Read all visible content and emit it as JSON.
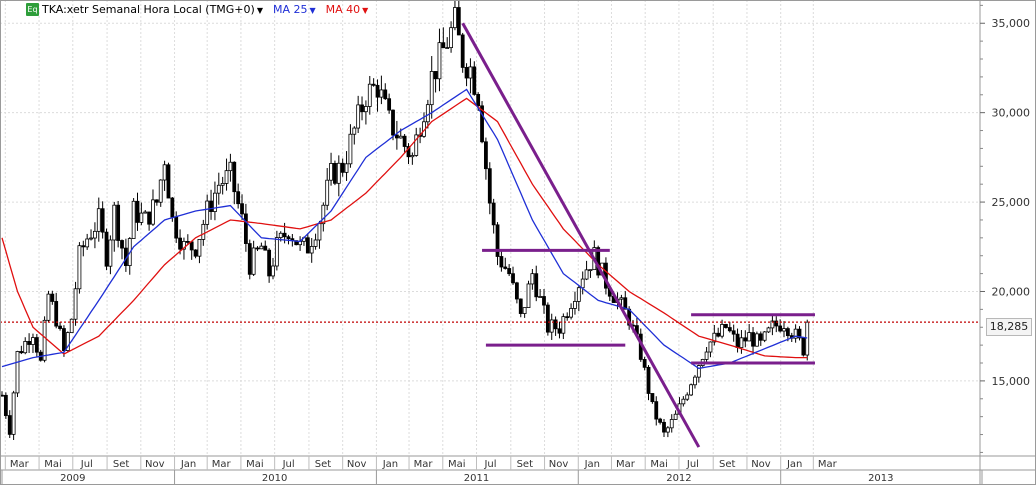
{
  "legend": {
    "symbol_text": "Eq",
    "instrument": "TKA:xetr Semanal Hora Local (TMG+0)",
    "ma25_label": "MA 25",
    "ma40_label": "MA 40"
  },
  "last_price_label": "18,285",
  "colors": {
    "candle": "#000000",
    "ma25": "#1f2fd6",
    "ma40": "#e01010",
    "trend_lines": "#7a1f8c",
    "price_line": "#c00000",
    "grid": "#dcdcdc",
    "legend_symbol": "#2e9e3a"
  },
  "chart_data": {
    "type": "candlestick",
    "instrument": "TKA:xetr",
    "interval": "Semanal",
    "x_range": [
      "2009-02-23",
      "2013-12-31"
    ],
    "y_range": [
      10800,
      36300
    ],
    "y_ticks": [
      15000,
      20000,
      25000,
      30000,
      35000
    ],
    "y_tick_labels": [
      "15,000",
      "20,000",
      "25,000",
      "30,000",
      "35,000"
    ],
    "month_labels": [
      {
        "date": "2009-03-01",
        "label": "Mar"
      },
      {
        "date": "2009-05-01",
        "label": "Mai"
      },
      {
        "date": "2009-07-01",
        "label": "Jul"
      },
      {
        "date": "2009-09-01",
        "label": "Set"
      },
      {
        "date": "2009-11-01",
        "label": "Nov"
      },
      {
        "date": "2010-01-01",
        "label": "Jan"
      },
      {
        "date": "2010-03-01",
        "label": "Mar"
      },
      {
        "date": "2010-05-01",
        "label": "Mai"
      },
      {
        "date": "2010-07-01",
        "label": "Jul"
      },
      {
        "date": "2010-09-01",
        "label": "Set"
      },
      {
        "date": "2010-11-01",
        "label": "Nov"
      },
      {
        "date": "2011-01-01",
        "label": "Jan"
      },
      {
        "date": "2011-03-01",
        "label": "Mar"
      },
      {
        "date": "2011-05-01",
        "label": "Mai"
      },
      {
        "date": "2011-07-01",
        "label": "Jul"
      },
      {
        "date": "2011-09-01",
        "label": "Set"
      },
      {
        "date": "2011-11-01",
        "label": "Nov"
      },
      {
        "date": "2012-01-01",
        "label": "Jan"
      },
      {
        "date": "2012-03-01",
        "label": "Mar"
      },
      {
        "date": "2012-05-01",
        "label": "Mai"
      },
      {
        "date": "2012-07-01",
        "label": "Jul"
      },
      {
        "date": "2012-09-01",
        "label": "Set"
      },
      {
        "date": "2012-11-01",
        "label": "Nov"
      },
      {
        "date": "2013-01-01",
        "label": "Jan"
      },
      {
        "date": "2013-03-01",
        "label": "Mar"
      }
    ],
    "year_labels": [
      {
        "date": "2009-07-01",
        "label": "2009"
      },
      {
        "date": "2010-07-01",
        "label": "2010"
      },
      {
        "date": "2011-07-01",
        "label": "2011"
      },
      {
        "date": "2012-07-01",
        "label": "2012"
      },
      {
        "date": "2013-07-01",
        "label": "2013"
      }
    ],
    "price_anchors": [
      [
        "2009-02-23",
        14200
      ],
      [
        "2009-03-09",
        12300
      ],
      [
        "2009-03-23",
        16500
      ],
      [
        "2009-04-20",
        17800
      ],
      [
        "2009-05-04",
        16000
      ],
      [
        "2009-05-18",
        19800
      ],
      [
        "2009-06-01",
        18500
      ],
      [
        "2009-06-15",
        16600
      ],
      [
        "2009-06-29",
        18500
      ],
      [
        "2009-07-13",
        22000
      ],
      [
        "2009-07-27",
        23000
      ],
      [
        "2009-08-17",
        24000
      ],
      [
        "2009-08-31",
        22000
      ],
      [
        "2009-09-14",
        24500
      ],
      [
        "2009-10-05",
        21500
      ],
      [
        "2009-10-19",
        24500
      ],
      [
        "2009-11-09",
        24000
      ],
      [
        "2009-11-30",
        25000
      ],
      [
        "2009-12-14",
        27500
      ],
      [
        "2009-12-28",
        24000
      ],
      [
        "2010-01-18",
        22500
      ],
      [
        "2010-02-08",
        22500
      ],
      [
        "2010-03-01",
        24500
      ],
      [
        "2010-03-22",
        26000
      ],
      [
        "2010-04-12",
        26500
      ],
      [
        "2010-05-03",
        24000
      ],
      [
        "2010-05-17",
        21500
      ],
      [
        "2010-06-07",
        22500
      ],
      [
        "2010-06-21",
        21000
      ],
      [
        "2010-07-05",
        22500
      ],
      [
        "2010-07-26",
        23500
      ],
      [
        "2010-08-16",
        22500
      ],
      [
        "2010-08-30",
        22500
      ],
      [
        "2010-09-20",
        24000
      ],
      [
        "2010-10-11",
        26500
      ],
      [
        "2010-11-01",
        27000
      ],
      [
        "2010-11-22",
        29000
      ],
      [
        "2010-12-13",
        31000
      ],
      [
        "2011-01-03",
        31500
      ],
      [
        "2011-01-24",
        29500
      ],
      [
        "2011-02-14",
        28500
      ],
      [
        "2011-03-07",
        27500
      ],
      [
        "2011-03-21",
        29500
      ],
      [
        "2011-04-11",
        32000
      ],
      [
        "2011-05-02",
        33500
      ],
      [
        "2011-05-23",
        35000
      ],
      [
        "2011-06-06",
        33000
      ],
      [
        "2011-06-20",
        32500
      ],
      [
        "2011-07-04",
        31000
      ],
      [
        "2011-07-25",
        25000
      ],
      [
        "2011-08-08",
        22000
      ],
      [
        "2011-08-29",
        21000
      ],
      [
        "2011-09-19",
        18500
      ],
      [
        "2011-10-10",
        21000
      ],
      [
        "2011-10-24",
        19500
      ],
      [
        "2011-11-07",
        18000
      ],
      [
        "2011-11-28",
        18000
      ],
      [
        "2011-12-19",
        19500
      ],
      [
        "2012-01-09",
        21000
      ],
      [
        "2012-01-30",
        22000
      ],
      [
        "2012-02-20",
        20500
      ],
      [
        "2012-03-12",
        19500
      ],
      [
        "2012-04-02",
        18500
      ],
      [
        "2012-04-23",
        16500
      ],
      [
        "2012-05-14",
        13500
      ],
      [
        "2012-06-04",
        12000
      ],
      [
        "2012-06-25",
        13000
      ],
      [
        "2012-07-16",
        14500
      ],
      [
        "2012-07-30",
        15500
      ],
      [
        "2012-08-20",
        17000
      ],
      [
        "2012-09-10",
        17500
      ],
      [
        "2012-09-24",
        18000
      ],
      [
        "2012-10-15",
        17000
      ],
      [
        "2012-11-05",
        17500
      ],
      [
        "2012-11-26",
        17000
      ],
      [
        "2012-12-17",
        18000
      ],
      [
        "2013-01-07",
        18300
      ],
      [
        "2013-01-28",
        17500
      ],
      [
        "2013-02-11",
        16800
      ],
      [
        "2013-02-18",
        18285
      ]
    ],
    "ma25_anchors": [
      [
        "2009-02-23",
        15800
      ],
      [
        "2009-04-20",
        16300
      ],
      [
        "2009-06-15",
        16600
      ],
      [
        "2009-08-17",
        19500
      ],
      [
        "2009-10-19",
        22500
      ],
      [
        "2009-12-14",
        24000
      ],
      [
        "2010-02-08",
        24500
      ],
      [
        "2010-04-12",
        24800
      ],
      [
        "2010-06-07",
        23000
      ],
      [
        "2010-08-16",
        22800
      ],
      [
        "2010-10-11",
        24500
      ],
      [
        "2010-12-13",
        27500
      ],
      [
        "2011-02-14",
        29000
      ],
      [
        "2011-04-11",
        30000
      ],
      [
        "2011-06-13",
        31300
      ],
      [
        "2011-08-08",
        28500
      ],
      [
        "2011-10-10",
        24000
      ],
      [
        "2011-12-05",
        21000
      ],
      [
        "2012-02-06",
        19500
      ],
      [
        "2012-04-02",
        19000
      ],
      [
        "2012-06-04",
        17000
      ],
      [
        "2012-08-06",
        15700
      ],
      [
        "2012-10-01",
        16000
      ],
      [
        "2012-12-03",
        16800
      ],
      [
        "2013-01-28",
        17500
      ],
      [
        "2013-02-18",
        17400
      ]
    ],
    "ma40_anchors": [
      [
        "2009-02-23",
        23000
      ],
      [
        "2009-03-23",
        20000
      ],
      [
        "2009-04-20",
        18000
      ],
      [
        "2009-06-15",
        16500
      ],
      [
        "2009-08-17",
        17500
      ],
      [
        "2009-10-19",
        19500
      ],
      [
        "2009-12-14",
        21500
      ],
      [
        "2010-02-08",
        23000
      ],
      [
        "2010-04-12",
        24000
      ],
      [
        "2010-06-07",
        23800
      ],
      [
        "2010-08-16",
        23500
      ],
      [
        "2010-10-11",
        24000
      ],
      [
        "2010-12-13",
        25500
      ],
      [
        "2011-02-14",
        27500
      ],
      [
        "2011-04-11",
        29500
      ],
      [
        "2011-06-13",
        30800
      ],
      [
        "2011-08-08",
        29500
      ],
      [
        "2011-10-10",
        26000
      ],
      [
        "2011-12-05",
        23500
      ],
      [
        "2012-02-06",
        21500
      ],
      [
        "2012-04-02",
        20000
      ],
      [
        "2012-06-04",
        18800
      ],
      [
        "2012-08-06",
        17500
      ],
      [
        "2012-10-01",
        17000
      ],
      [
        "2012-12-03",
        16400
      ],
      [
        "2013-01-28",
        16300
      ],
      [
        "2013-02-18",
        16300
      ]
    ],
    "last_price": 18285,
    "annotations": [
      {
        "type": "trendline",
        "from": [
          "2011-06-06",
          35000
        ],
        "to": [
          "2012-08-06",
          11300
        ]
      },
      {
        "type": "hline",
        "from": [
          "2011-07-11",
          22300
        ],
        "to": [
          "2012-02-27",
          22300
        ]
      },
      {
        "type": "hline",
        "from": [
          "2011-07-18",
          17000
        ],
        "to": [
          "2012-03-26",
          17000
        ]
      },
      {
        "type": "hline",
        "from": [
          "2012-07-23",
          18700
        ],
        "to": [
          "2013-03-04",
          18700
        ]
      },
      {
        "type": "hline",
        "from": [
          "2012-07-23",
          16000
        ],
        "to": [
          "2013-03-04",
          16000
        ]
      }
    ]
  }
}
